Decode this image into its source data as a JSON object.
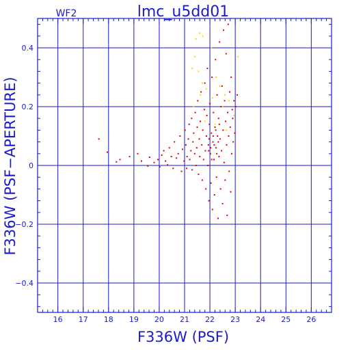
{
  "chart_data": {
    "type": "scatter",
    "title": "lmc_u5dd01",
    "subtitle": "WF2",
    "xlabel": "F336W (PSF)",
    "ylabel": "F336W (PSF−APERTURE)",
    "xlim": [
      15.2,
      26.8
    ],
    "ylim": [
      -0.5,
      0.5
    ],
    "grid": true,
    "x_ticks": [
      16,
      17,
      18,
      19,
      20,
      21,
      22,
      23,
      24,
      25,
      26
    ],
    "x_tick_labels": [
      "16",
      "17",
      "18",
      "19",
      "20",
      "21",
      "22",
      "23",
      "24",
      "25",
      "26"
    ],
    "y_ticks": [
      -0.4,
      -0.2,
      0,
      0.2,
      0.4
    ],
    "y_tick_labels": [
      "−0.4",
      "−0.2",
      "0",
      "0.2",
      "0.4"
    ],
    "colors": {
      "axis": "#1a1acc",
      "grid": "#1a1acc",
      "red_points": "#e00000",
      "yellow_points": "#ffd700"
    },
    "series": [
      {
        "color": "red",
        "points": [
          [
            17.62,
            0.09
          ],
          [
            17.95,
            0.045
          ],
          [
            18.31,
            0.012
          ],
          [
            18.45,
            0.02
          ],
          [
            18.83,
            0.03
          ],
          [
            19.15,
            0.04
          ],
          [
            19.3,
            0.015
          ],
          [
            19.55,
            -0.002
          ],
          [
            19.62,
            0.028
          ],
          [
            19.8,
            0.01
          ],
          [
            19.95,
            0.02
          ],
          [
            20.02,
            -0.005
          ],
          [
            20.1,
            0.035
          ],
          [
            20.18,
            0.05
          ],
          [
            20.25,
            0.015
          ],
          [
            20.33,
            0.002
          ],
          [
            20.4,
            0.06
          ],
          [
            20.48,
            0.03
          ],
          [
            20.55,
            -0.01
          ],
          [
            20.6,
            0.08
          ],
          [
            20.68,
            0.025
          ],
          [
            20.75,
            0.04
          ],
          [
            20.82,
            0.1
          ],
          [
            20.88,
            -0.02
          ],
          [
            20.92,
            0.055
          ],
          [
            20.98,
            0.015
          ],
          [
            21.02,
            0.12
          ],
          [
            21.05,
            0.07
          ],
          [
            21.08,
            -0.01
          ],
          [
            21.1,
            0.03
          ],
          [
            21.15,
            0.09
          ],
          [
            21.18,
            0.14
          ],
          [
            21.2,
            0.02
          ],
          [
            21.25,
            0.05
          ],
          [
            21.28,
            0.16
          ],
          [
            21.3,
            -0.015
          ],
          [
            21.33,
            0.08
          ],
          [
            21.36,
            0.11
          ],
          [
            21.4,
            0.04
          ],
          [
            21.42,
            0.18
          ],
          [
            21.45,
            0.0
          ],
          [
            21.48,
            0.06
          ],
          [
            21.5,
            0.13
          ],
          [
            21.52,
            0.22
          ],
          [
            21.55,
            -0.03
          ],
          [
            21.58,
            0.09
          ],
          [
            21.6,
            0.03
          ],
          [
            21.62,
            0.15
          ],
          [
            21.65,
            0.25
          ],
          [
            21.68,
            0.07
          ],
          [
            21.7,
            -0.05
          ],
          [
            21.72,
            0.12
          ],
          [
            21.75,
            0.02
          ],
          [
            21.78,
            0.19
          ],
          [
            21.8,
            0.28
          ],
          [
            21.82,
            0.05
          ],
          [
            21.84,
            -0.08
          ],
          [
            21.86,
            0.1
          ],
          [
            21.88,
            0.17
          ],
          [
            21.9,
            0.33
          ],
          [
            21.92,
            0.0
          ],
          [
            21.94,
            0.07
          ],
          [
            21.96,
            -0.12
          ],
          [
            21.98,
            0.14
          ],
          [
            22.0,
            0.21
          ],
          [
            22.02,
            0.04
          ],
          [
            22.04,
            -0.06
          ],
          [
            22.06,
            0.11
          ],
          [
            22.08,
            0.3
          ],
          [
            22.1,
            -0.15
          ],
          [
            22.12,
            0.08
          ],
          [
            22.14,
            0.18
          ],
          [
            22.16,
            0.02
          ],
          [
            22.18,
            -0.1
          ],
          [
            22.2,
            0.13
          ],
          [
            22.22,
            0.36
          ],
          [
            22.24,
            0.06
          ],
          [
            22.26,
            -0.04
          ],
          [
            22.28,
            0.24
          ],
          [
            22.3,
            0.1
          ],
          [
            22.32,
            -0.18
          ],
          [
            22.34,
            0.16
          ],
          [
            22.36,
            0.03
          ],
          [
            22.38,
            0.42
          ],
          [
            22.4,
            0.09
          ],
          [
            22.42,
            -0.08
          ],
          [
            22.44,
            0.2
          ],
          [
            22.46,
            0.05
          ],
          [
            22.48,
            0.27
          ],
          [
            22.5,
            -0.13
          ],
          [
            22.52,
            0.12
          ],
          [
            22.54,
            0.46
          ],
          [
            22.56,
            0.01
          ],
          [
            22.58,
            0.22
          ],
          [
            22.6,
            -0.05
          ],
          [
            22.62,
            0.15
          ],
          [
            22.64,
            0.38
          ],
          [
            22.66,
            0.07
          ],
          [
            22.68,
            -0.17
          ],
          [
            22.7,
            0.18
          ],
          [
            22.72,
            0.48
          ],
          [
            22.74,
            0.1
          ],
          [
            22.76,
            -0.02
          ],
          [
            22.78,
            0.25
          ],
          [
            22.8,
            0.13
          ],
          [
            22.82,
            -0.09
          ],
          [
            22.84,
            0.3
          ],
          [
            22.86,
            0.04
          ],
          [
            22.88,
            0.19
          ],
          [
            22.9,
            0.16
          ],
          [
            22.92,
            0.08
          ],
          [
            22.95,
            0.22
          ],
          [
            22.98,
            0.11
          ],
          [
            23.02,
            0.2
          ],
          [
            23.08,
            0.24
          ],
          [
            21.95,
            0.05
          ],
          [
            21.97,
            0.09
          ],
          [
            22.03,
            0.06
          ],
          [
            22.07,
            0.02
          ],
          [
            22.13,
            0.1
          ],
          [
            22.17,
            0.07
          ],
          [
            22.23,
            0.12
          ],
          [
            22.27,
            0.04
          ],
          [
            22.33,
            0.08
          ],
          [
            22.37,
            0.14
          ]
        ]
      },
      {
        "color": "yellow",
        "points": [
          [
            21.45,
            0.43
          ],
          [
            21.6,
            0.45
          ],
          [
            21.72,
            0.44
          ],
          [
            21.4,
            0.37
          ],
          [
            22.05,
            0.4
          ],
          [
            21.3,
            0.33
          ],
          [
            21.55,
            0.32
          ],
          [
            22.25,
            0.3
          ],
          [
            21.7,
            0.28
          ],
          [
            21.85,
            0.26
          ],
          [
            22.4,
            0.27
          ],
          [
            22.6,
            0.24
          ],
          [
            21.62,
            0.24
          ],
          [
            22.1,
            0.23
          ],
          [
            22.75,
            0.22
          ],
          [
            21.35,
            0.2
          ],
          [
            22.5,
            0.2
          ],
          [
            23.1,
            0.37
          ],
          [
            22.95,
            0.17
          ],
          [
            21.8,
            0.15
          ],
          [
            22.2,
            0.14
          ],
          [
            22.65,
            0.12
          ]
        ]
      }
    ]
  }
}
